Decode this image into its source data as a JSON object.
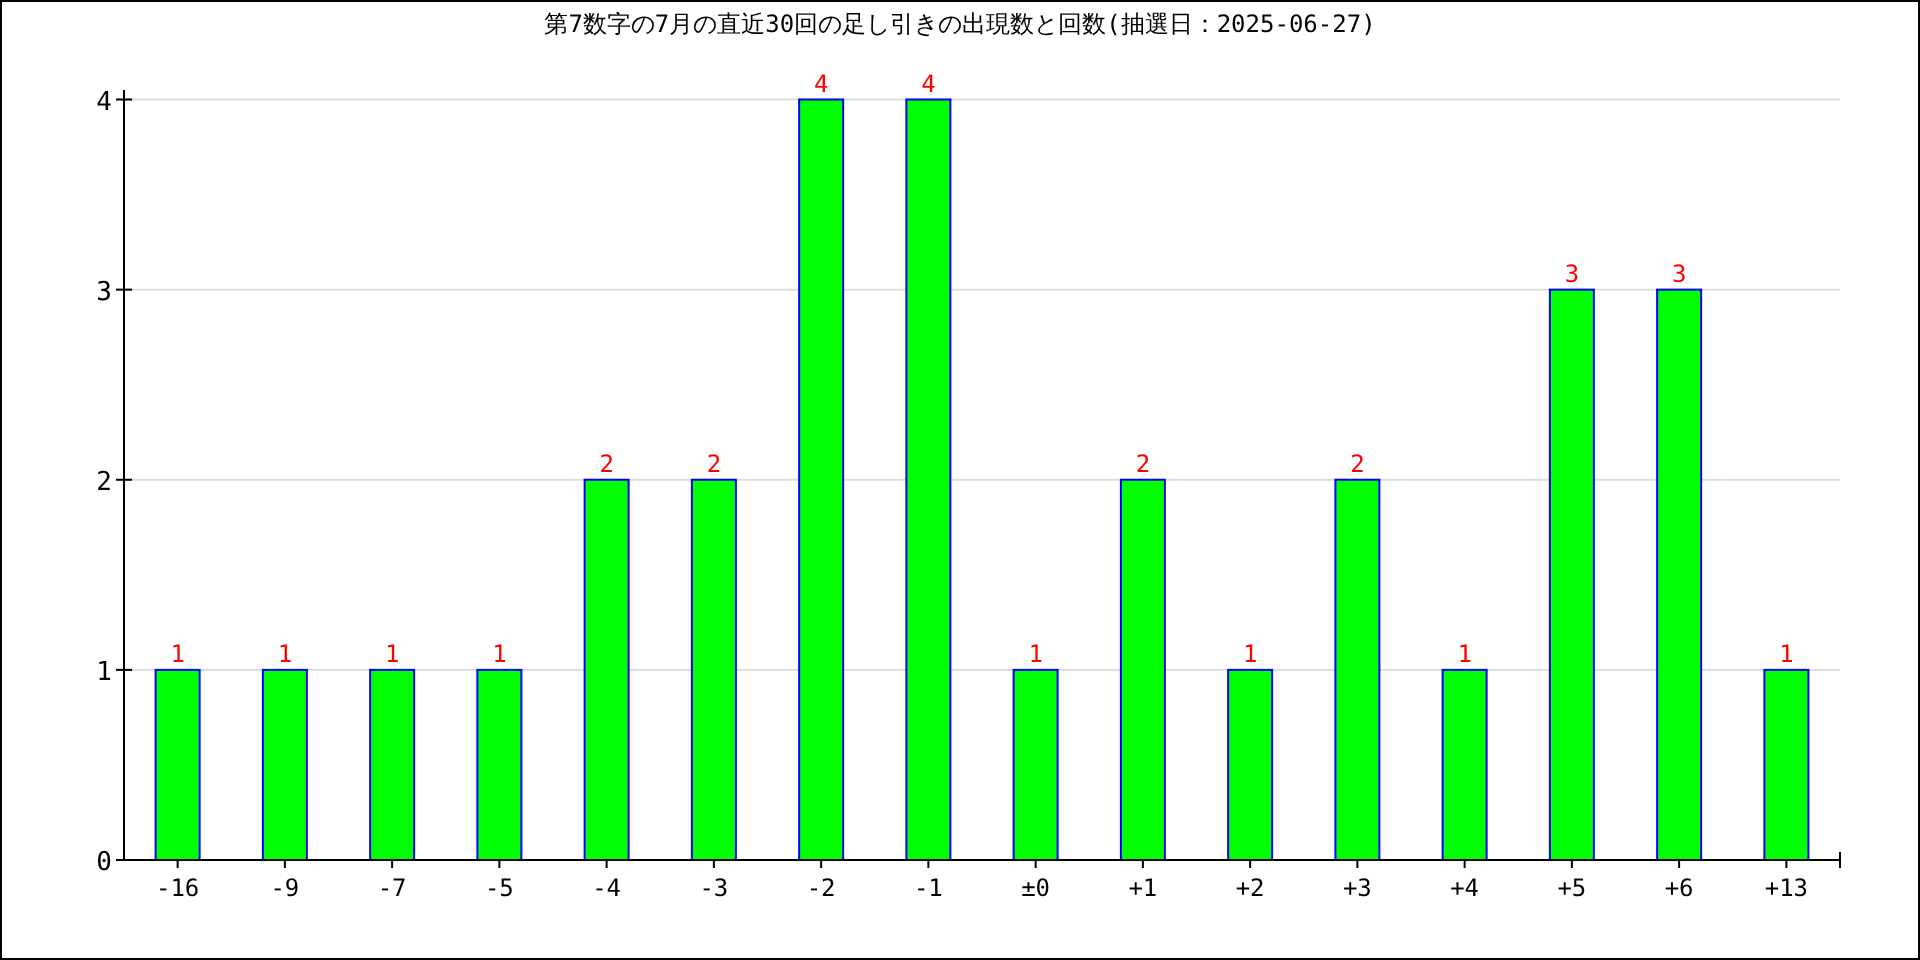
{
  "chart_data": {
    "type": "bar",
    "title": "第7数字の7月の直近30回の足し引きの出現数と回数(抽選日：2025-06-27)",
    "categories": [
      "-16",
      "-9",
      "-7",
      "-5",
      "-4",
      "-3",
      "-2",
      "-1",
      "±0",
      "+1",
      "+2",
      "+3",
      "+4",
      "+5",
      "+6",
      "+13"
    ],
    "values": [
      1,
      1,
      1,
      1,
      2,
      2,
      4,
      4,
      1,
      2,
      1,
      2,
      1,
      3,
      3,
      1
    ],
    "color": "#00ff00",
    "ylim": [
      0,
      4.05
    ],
    "yticks": [
      0,
      1,
      2,
      3,
      4
    ],
    "grid": "y",
    "data_labels": true
  }
}
